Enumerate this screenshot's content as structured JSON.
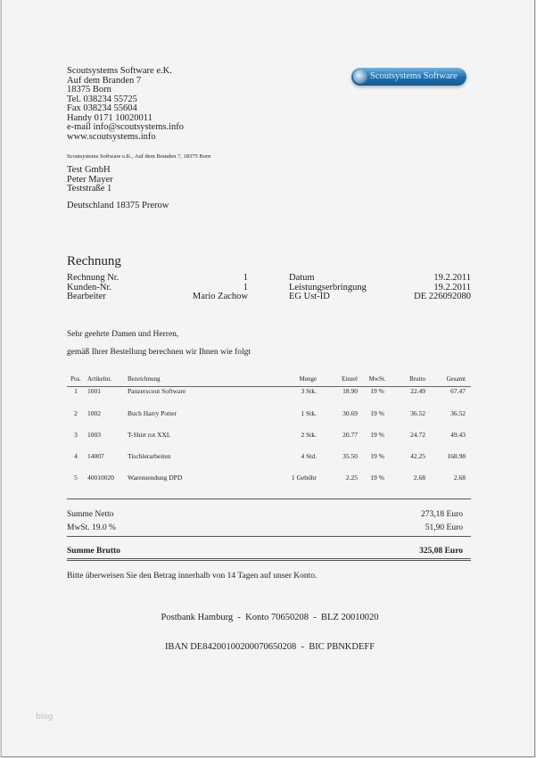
{
  "sender": {
    "lines": [
      "Scoutsystems Software e.K.",
      "Auf dem Branden 7",
      "18375 Born",
      "Tel. 038234 55725",
      "Fax 038234 55604",
      "Handy 0171 10020011",
      "e-mail info@scoutsystems.info",
      "www.scoutsystems.info"
    ],
    "return_line": "Scoutsystems Software e.K., Auf dem Branden 7, 18375 Born"
  },
  "logo": {
    "text": "Scoutsystems Software",
    "color": "#1f6fae"
  },
  "recipient": {
    "lines": [
      "Test GmbH",
      "Peter Mayer",
      "Teststraße 1"
    ],
    "country_line": "Deutschland 18375 Prerow"
  },
  "title": "Rechnung",
  "info": {
    "left": [
      {
        "label": "Rechnung Nr.",
        "value": "1"
      },
      {
        "label": "Kunden-Nr.",
        "value": "1"
      },
      {
        "label": "Bearbeiter",
        "value": "Mario Zachow"
      }
    ],
    "right": [
      {
        "label": "Datum",
        "value": "19.2.2011"
      },
      {
        "label": "Leistungserbringung",
        "value": "19.2.2011"
      },
      {
        "label": "EG Ust-ID",
        "value": "DE 226092080"
      }
    ]
  },
  "greeting": "Sehr geehrte Damen und Herren,",
  "intro": "gemäß Ihrer Bestellung berechnen wir Ihnen wie folgt",
  "table": {
    "headers": [
      "Pos.",
      "Artikelnr.",
      "Bezeichnung",
      "Menge",
      "Einzel",
      "MwSt.",
      "Brutto",
      "Gesamt"
    ],
    "rows": [
      [
        "1",
        "1001",
        "Panzerscout Software",
        "3 Stk.",
        "18.90",
        "19 %",
        "22.49",
        "67.47"
      ],
      [
        "2",
        "1002",
        "Buch Harry Potter",
        "1 Stk.",
        "30.69",
        "19 %",
        "36.52",
        "36.52"
      ],
      [
        "3",
        "1003",
        "T-Shirt rot XXL",
        "2 Stk.",
        "20.77",
        "19 %",
        "24.72",
        "49.43"
      ],
      [
        "4",
        "14007",
        "Tischlerarbeiten",
        "4 Std.",
        "35.50",
        "19 %",
        "42.25",
        "168.98"
      ],
      [
        "5",
        "40010020",
        "Warensendung DPD",
        "1 Gebühr",
        "2.25",
        "19 %",
        "2.68",
        "2.68"
      ]
    ]
  },
  "totals": {
    "netto_label": "Summe Netto",
    "netto": "273,18 Euro",
    "mwst_label": "MwSt. 19.0 %",
    "mwst": "51,90 Euro",
    "brutto_label": "Summe Brutto",
    "brutto": "325,08 Euro"
  },
  "payment_note": "Bitte überweisen Sie den Betrag innerhalb von 14 Tagen auf unser Konto.",
  "bank": [
    "Postbank Hamburg  -  Konto 70650208  -  BLZ 20010020",
    "IBAN DE84200100200070650208  -  BIC PBNKDEFF"
  ],
  "watermark": "blog"
}
